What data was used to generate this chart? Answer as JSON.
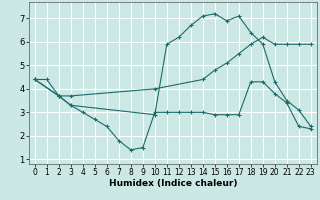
{
  "xlabel": "Humidex (Indice chaleur)",
  "background_color": "#cce8e4",
  "grid_color": "#ffffff",
  "line_color": "#1a6b6b",
  "xlim": [
    -0.5,
    23.5
  ],
  "ylim": [
    0.8,
    7.7
  ],
  "yticks": [
    1,
    2,
    3,
    4,
    5,
    6,
    7
  ],
  "xticks": [
    0,
    1,
    2,
    3,
    4,
    5,
    6,
    7,
    8,
    9,
    10,
    11,
    12,
    13,
    14,
    15,
    16,
    17,
    18,
    19,
    20,
    21,
    22,
    23
  ],
  "series": [
    {
      "x": [
        0,
        1,
        2,
        3,
        10,
        11,
        12,
        13,
        14,
        15,
        16,
        17,
        18,
        19,
        20,
        21,
        22,
        23
      ],
      "y": [
        4.4,
        4.4,
        3.7,
        3.3,
        2.9,
        5.9,
        6.2,
        6.7,
        7.1,
        7.2,
        6.9,
        7.1,
        6.4,
        5.9,
        4.3,
        3.5,
        3.1,
        2.4
      ]
    },
    {
      "x": [
        0,
        2,
        3,
        4,
        5,
        6,
        7,
        8,
        9,
        10,
        11,
        12,
        13,
        14,
        15,
        16,
        17,
        18,
        19,
        20,
        21,
        22,
        23
      ],
      "y": [
        4.4,
        3.7,
        3.3,
        3.0,
        2.7,
        2.4,
        1.8,
        1.4,
        1.5,
        3.0,
        3.0,
        3.0,
        3.0,
        3.0,
        2.9,
        2.9,
        2.9,
        4.3,
        4.3,
        3.8,
        3.4,
        2.4,
        2.3
      ]
    },
    {
      "x": [
        0,
        2,
        3,
        10,
        14,
        15,
        16,
        17,
        18,
        19,
        20,
        21,
        22,
        23
      ],
      "y": [
        4.4,
        3.7,
        3.7,
        4.0,
        4.4,
        4.8,
        5.1,
        5.5,
        5.9,
        6.2,
        5.9,
        5.9,
        5.9,
        5.9
      ]
    }
  ]
}
